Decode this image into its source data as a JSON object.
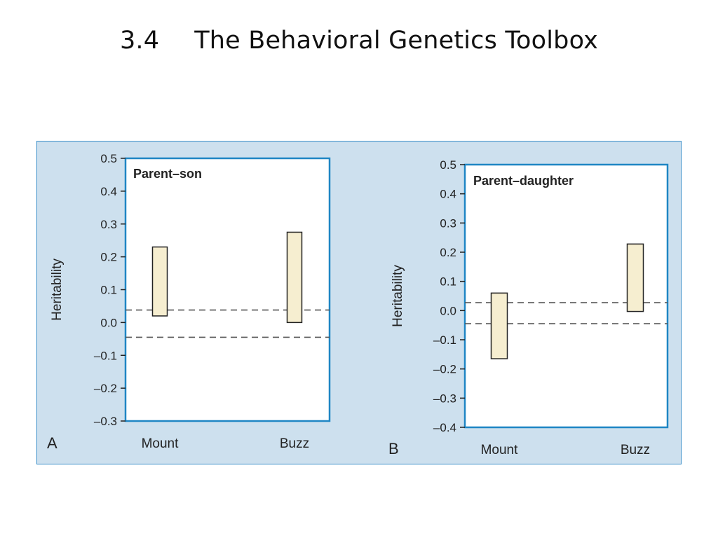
{
  "slide": {
    "number": "3.4",
    "title": "The Behavioral Genetics Toolbox"
  },
  "colors": {
    "panel_background": "#cde0ee",
    "frame_border": "#1f86c4",
    "bar_fill": "#f6eed0",
    "bar_stroke": "#222222",
    "dashed_line": "#555555"
  },
  "chart_data": [
    {
      "panel": "A",
      "type": "bar",
      "title": "Parent–son",
      "ylabel": "Heritability",
      "ylim": [
        -0.3,
        0.5
      ],
      "yticks": [
        "0.5",
        "0.4",
        "0.3",
        "0.2",
        "0.1",
        "0.0",
        "–0.1",
        "–0.2",
        "–0.3"
      ],
      "yticks_values": [
        0.5,
        0.4,
        0.3,
        0.2,
        0.1,
        0.0,
        -0.1,
        -0.2,
        -0.3
      ],
      "categories": [
        "Mount",
        "Buzz"
      ],
      "ranges": [
        [
          0.02,
          0.23
        ],
        [
          0.0,
          0.275
        ]
      ],
      "reference_lines": [
        0.038,
        -0.045
      ]
    },
    {
      "panel": "B",
      "type": "bar",
      "title": "Parent–daughter",
      "ylabel": "Heritability",
      "ylim": [
        -0.4,
        0.5
      ],
      "yticks": [
        "0.5",
        "0.4",
        "0.3",
        "0.2",
        "0.1",
        "0.0",
        "–0.1",
        "–0.2",
        "–0.3",
        "–0.4"
      ],
      "yticks_values": [
        0.5,
        0.4,
        0.3,
        0.2,
        0.1,
        0.0,
        -0.1,
        -0.2,
        -0.3,
        -0.4
      ],
      "categories": [
        "Mount",
        "Buzz"
      ],
      "ranges": [
        [
          -0.165,
          0.06
        ],
        [
          -0.003,
          0.228
        ]
      ],
      "reference_lines": [
        0.027,
        -0.045
      ]
    }
  ]
}
